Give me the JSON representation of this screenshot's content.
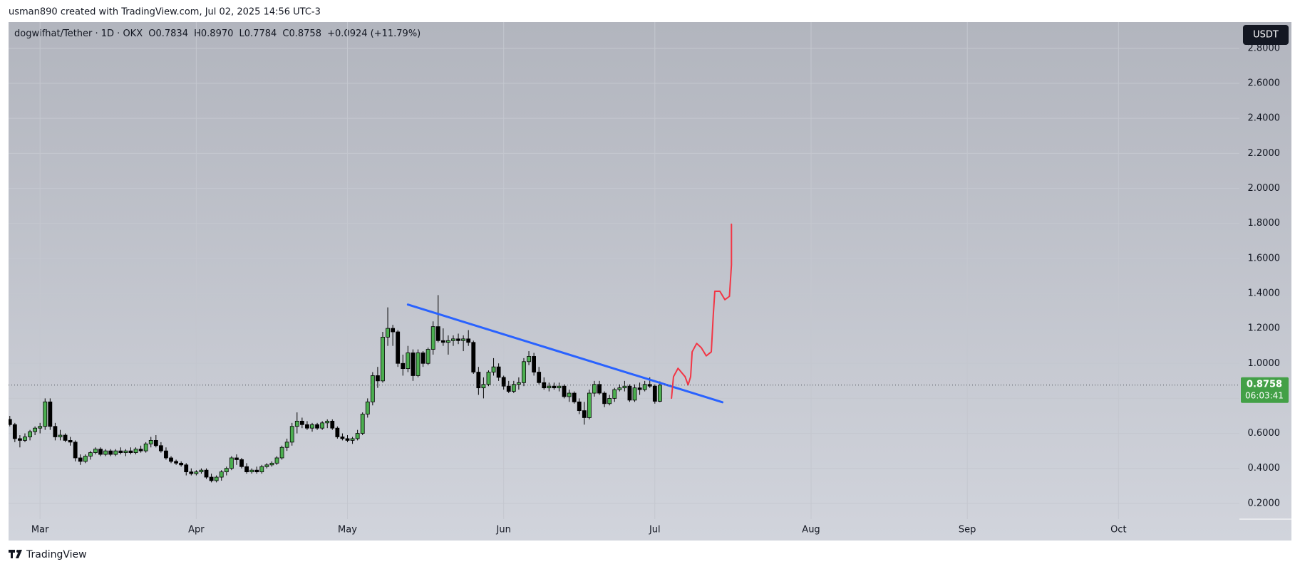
{
  "chart_data": {
    "type": "candlestick",
    "attribution": "usman890 created with TradingView.com, Jul 02, 2025 14:56 UTC-3",
    "legend": {
      "symbol": "dogwifhat/Tether · 1D · OKX",
      "open": "O0.7834",
      "high": "H0.8970",
      "low": "L0.7784",
      "close": "C0.8758",
      "change": "+0.0924 (+11.79%)"
    },
    "currency": "USDT",
    "countdown": "06:03:41",
    "brand": "TradingView",
    "up_color": "#4caf50",
    "down_color": "#000000",
    "grid": true,
    "x": [
      -6,
      -5,
      -4,
      -3,
      -2,
      -1,
      0,
      1,
      2,
      3,
      4,
      5,
      6,
      7,
      8,
      9,
      10,
      11,
      12,
      13,
      14,
      15,
      16,
      17,
      18,
      19,
      20,
      21,
      22,
      23,
      24,
      25,
      26,
      27,
      28,
      29,
      30,
      31,
      32,
      33,
      34,
      35,
      36,
      37,
      38,
      39,
      40,
      41,
      42,
      43,
      44,
      45,
      46,
      47,
      48,
      49,
      50,
      51,
      52,
      53,
      54,
      55,
      56,
      57,
      58,
      59,
      60,
      61,
      62,
      63,
      64,
      65,
      66,
      67,
      68,
      69,
      70,
      71,
      72,
      73,
      74,
      75,
      76,
      77,
      78,
      79,
      80,
      81,
      82,
      83,
      84,
      85,
      86,
      87,
      88,
      89,
      90,
      91,
      92,
      93,
      94,
      95,
      96,
      97,
      98,
      99,
      100,
      101,
      102,
      103,
      104,
      105,
      106,
      107,
      108,
      109,
      110,
      111,
      112,
      113,
      114,
      115,
      116,
      117,
      118,
      119,
      120,
      121,
      122,
      123
    ],
    "open": [
      0.68,
      0.65,
      0.57,
      0.56,
      0.58,
      0.61,
      0.63,
      0.64,
      0.78,
      0.64,
      0.58,
      0.59,
      0.56,
      0.55,
      0.46,
      0.44,
      0.47,
      0.49,
      0.51,
      0.48,
      0.5,
      0.48,
      0.5,
      0.49,
      0.5,
      0.49,
      0.51,
      0.5,
      0.54,
      0.56,
      0.53,
      0.5,
      0.46,
      0.44,
      0.43,
      0.42,
      0.38,
      0.37,
      0.38,
      0.39,
      0.35,
      0.33,
      0.35,
      0.38,
      0.4,
      0.46,
      0.45,
      0.41,
      0.38,
      0.39,
      0.38,
      0.41,
      0.42,
      0.43,
      0.46,
      0.52,
      0.55,
      0.64,
      0.67,
      0.65,
      0.63,
      0.65,
      0.63,
      0.66,
      0.67,
      0.63,
      0.58,
      0.57,
      0.56,
      0.57,
      0.6,
      0.71,
      0.78,
      0.93,
      0.9,
      1.15,
      1.2,
      1.18,
      1.0,
      0.97,
      1.06,
      0.93,
      1.06,
      1.0,
      1.08,
      1.21,
      1.13,
      1.12,
      1.13,
      1.14,
      1.13,
      1.14,
      1.12,
      0.95,
      0.86,
      0.88,
      0.95,
      0.98,
      0.92,
      0.87,
      0.84,
      0.88,
      0.89,
      1.01,
      1.04,
      0.95,
      0.89,
      0.86,
      0.87,
      0.86,
      0.87,
      0.81,
      0.83,
      0.78,
      0.73,
      0.69,
      0.83,
      0.88,
      0.83,
      0.77,
      0.8,
      0.85,
      0.86,
      0.87,
      0.79,
      0.86,
      0.85,
      0.88,
      0.87,
      0.7834
    ],
    "high": [
      0.7,
      0.66,
      0.59,
      0.6,
      0.62,
      0.64,
      0.66,
      0.8,
      0.8,
      0.66,
      0.62,
      0.6,
      0.58,
      0.56,
      0.48,
      0.48,
      0.5,
      0.52,
      0.52,
      0.51,
      0.51,
      0.51,
      0.52,
      0.51,
      0.52,
      0.52,
      0.53,
      0.55,
      0.58,
      0.59,
      0.55,
      0.52,
      0.47,
      0.45,
      0.44,
      0.43,
      0.4,
      0.39,
      0.4,
      0.4,
      0.37,
      0.36,
      0.39,
      0.41,
      0.47,
      0.48,
      0.46,
      0.43,
      0.4,
      0.41,
      0.42,
      0.43,
      0.44,
      0.47,
      0.53,
      0.57,
      0.66,
      0.72,
      0.69,
      0.67,
      0.66,
      0.66,
      0.67,
      0.68,
      0.68,
      0.64,
      0.6,
      0.59,
      0.58,
      0.62,
      0.72,
      0.8,
      0.95,
      0.98,
      1.18,
      1.32,
      1.22,
      1.19,
      1.05,
      1.1,
      1.08,
      1.08,
      1.07,
      1.09,
      1.24,
      1.39,
      1.2,
      1.16,
      1.16,
      1.17,
      1.16,
      1.19,
      1.13,
      0.98,
      0.92,
      0.96,
      1.03,
      1.0,
      0.93,
      0.9,
      0.9,
      0.92,
      1.03,
      1.07,
      1.06,
      0.98,
      0.92,
      0.89,
      0.89,
      0.89,
      0.88,
      0.85,
      0.84,
      0.8,
      0.78,
      0.85,
      0.9,
      0.9,
      0.84,
      0.82,
      0.86,
      0.88,
      0.9,
      0.88,
      0.88,
      0.89,
      0.9,
      0.92,
      0.88,
      0.897
    ],
    "low": [
      0.64,
      0.55,
      0.52,
      0.55,
      0.56,
      0.59,
      0.6,
      0.62,
      0.62,
      0.56,
      0.56,
      0.55,
      0.53,
      0.44,
      0.42,
      0.43,
      0.45,
      0.48,
      0.47,
      0.47,
      0.47,
      0.47,
      0.48,
      0.47,
      0.48,
      0.48,
      0.49,
      0.49,
      0.52,
      0.52,
      0.49,
      0.45,
      0.43,
      0.42,
      0.41,
      0.36,
      0.36,
      0.36,
      0.37,
      0.34,
      0.32,
      0.32,
      0.33,
      0.36,
      0.39,
      0.42,
      0.4,
      0.37,
      0.37,
      0.37,
      0.37,
      0.4,
      0.41,
      0.42,
      0.45,
      0.5,
      0.53,
      0.6,
      0.63,
      0.62,
      0.61,
      0.62,
      0.62,
      0.63,
      0.62,
      0.57,
      0.56,
      0.55,
      0.54,
      0.56,
      0.59,
      0.69,
      0.76,
      0.86,
      0.89,
      1.1,
      1.1,
      0.98,
      0.93,
      0.95,
      0.9,
      0.92,
      0.98,
      0.99,
      1.05,
      1.12,
      1.1,
      1.05,
      1.1,
      1.11,
      1.07,
      1.1,
      0.94,
      0.82,
      0.8,
      0.87,
      0.93,
      0.9,
      0.85,
      0.83,
      0.83,
      0.85,
      0.87,
      0.99,
      0.93,
      0.88,
      0.85,
      0.84,
      0.85,
      0.84,
      0.8,
      0.78,
      0.77,
      0.71,
      0.65,
      0.68,
      0.81,
      0.82,
      0.75,
      0.76,
      0.78,
      0.84,
      0.84,
      0.78,
      0.78,
      0.82,
      0.84,
      0.86,
      0.77,
      0.7784
    ],
    "close": [
      0.65,
      0.57,
      0.56,
      0.58,
      0.61,
      0.63,
      0.64,
      0.78,
      0.64,
      0.58,
      0.59,
      0.56,
      0.55,
      0.46,
      0.44,
      0.47,
      0.49,
      0.51,
      0.48,
      0.5,
      0.48,
      0.5,
      0.49,
      0.5,
      0.49,
      0.51,
      0.5,
      0.54,
      0.56,
      0.53,
      0.5,
      0.46,
      0.44,
      0.43,
      0.42,
      0.38,
      0.37,
      0.38,
      0.39,
      0.35,
      0.33,
      0.35,
      0.38,
      0.4,
      0.46,
      0.45,
      0.41,
      0.38,
      0.39,
      0.38,
      0.41,
      0.42,
      0.43,
      0.46,
      0.52,
      0.55,
      0.64,
      0.67,
      0.65,
      0.63,
      0.65,
      0.63,
      0.66,
      0.67,
      0.63,
      0.58,
      0.57,
      0.56,
      0.57,
      0.6,
      0.71,
      0.78,
      0.93,
      0.9,
      1.15,
      1.2,
      1.18,
      1.0,
      0.97,
      1.06,
      0.93,
      1.06,
      1.0,
      1.08,
      1.21,
      1.13,
      1.12,
      1.13,
      1.14,
      1.13,
      1.14,
      1.12,
      0.95,
      0.86,
      0.88,
      0.95,
      0.98,
      0.92,
      0.87,
      0.84,
      0.88,
      0.89,
      1.01,
      1.04,
      0.95,
      0.89,
      0.86,
      0.87,
      0.86,
      0.87,
      0.81,
      0.83,
      0.78,
      0.73,
      0.69,
      0.83,
      0.88,
      0.83,
      0.77,
      0.8,
      0.85,
      0.86,
      0.87,
      0.79,
      0.86,
      0.85,
      0.88,
      0.87,
      0.7834,
      0.8758
    ],
    "xlim": [
      -6.25,
      238
    ],
    "xticks": [
      {
        "value": 0,
        "label": "Mar"
      },
      {
        "value": 31,
        "label": "Apr"
      },
      {
        "value": 61,
        "label": "May"
      },
      {
        "value": 92,
        "label": "Jun"
      },
      {
        "value": 122,
        "label": "Jul"
      },
      {
        "value": 153,
        "label": "Aug"
      },
      {
        "value": 184,
        "label": "Sep"
      },
      {
        "value": 214,
        "label": "Oct"
      }
    ],
    "ylim": [
      0.11,
      2.95
    ],
    "yticks": [
      {
        "value": 0.2,
        "label": "0.2000"
      },
      {
        "value": 0.4,
        "label": "0.4000"
      },
      {
        "value": 0.6,
        "label": "0.6000"
      },
      {
        "value": 0.8,
        "label": "0.8000"
      },
      {
        "value": 1.0,
        "label": "1.0000"
      },
      {
        "value": 1.2,
        "label": "1.2000"
      },
      {
        "value": 1.4,
        "label": "1.4000"
      },
      {
        "value": 1.6,
        "label": "1.6000"
      },
      {
        "value": 1.8,
        "label": "1.8000"
      },
      {
        "value": 2.0,
        "label": "2.0000"
      },
      {
        "value": 2.2,
        "label": "2.2000"
      },
      {
        "value": 2.4,
        "label": "2.4000"
      },
      {
        "value": 2.6,
        "label": "2.6000"
      },
      {
        "value": 2.8,
        "label": "2.8000"
      }
    ],
    "drawings": [
      {
        "color": "#2962ff",
        "x": [
          73.0,
          135.4
        ],
        "y": [
          1.336,
          0.778
        ]
      },
      {
        "color": "#f23645",
        "x": [
          125.3,
          125.7,
          126.6,
          128.0,
          128.6,
          129.1,
          129.4,
          130.3,
          131.2,
          132.2,
          133.2,
          133.6,
          133.9,
          134.9,
          135.9,
          136.8,
          137.2,
          137.2
        ],
        "y": [
          0.801,
          0.924,
          0.972,
          0.924,
          0.877,
          0.924,
          1.066,
          1.114,
          1.09,
          1.043,
          1.066,
          1.279,
          1.412,
          1.412,
          1.364,
          1.383,
          1.563,
          1.795
        ]
      }
    ]
  }
}
